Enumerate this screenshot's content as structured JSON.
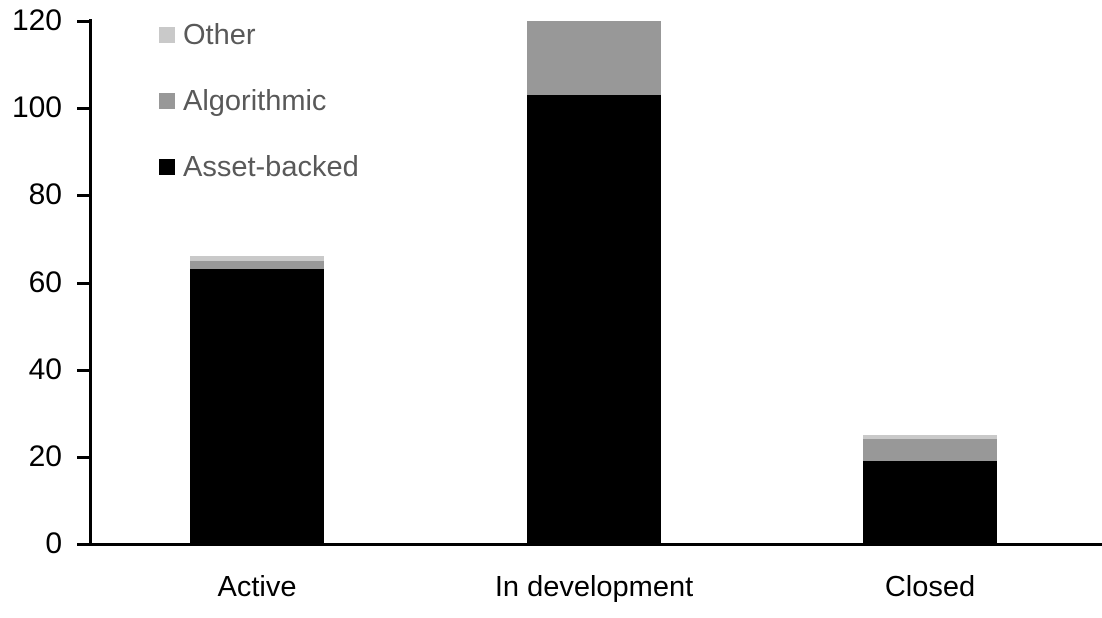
{
  "chart_data": {
    "type": "bar",
    "stacked": true,
    "title": "",
    "xlabel": "",
    "ylabel": "",
    "categories": [
      "Active",
      "In development",
      "Closed"
    ],
    "series": [
      {
        "name": "Asset-backed",
        "color": "#000000",
        "values": [
          63,
          103,
          19
        ]
      },
      {
        "name": "Algorithmic",
        "color": "#989898",
        "values": [
          2,
          17,
          5
        ]
      },
      {
        "name": "Other",
        "color": "#c9c9c9",
        "values": [
          1,
          0,
          1
        ]
      }
    ],
    "totals": [
      66,
      120,
      25
    ],
    "ylim": [
      0,
      120
    ],
    "yticks": [
      0,
      20,
      40,
      60,
      80,
      100,
      120
    ],
    "grid": false,
    "legend_position": "top-left",
    "legend_entries": [
      "Other",
      "Algorithmic",
      "Asset-backed"
    ],
    "axis_color": "#000000",
    "tick_label_color": "#000000",
    "category_label_color": "#000000",
    "legend_text_color": "#595959"
  }
}
